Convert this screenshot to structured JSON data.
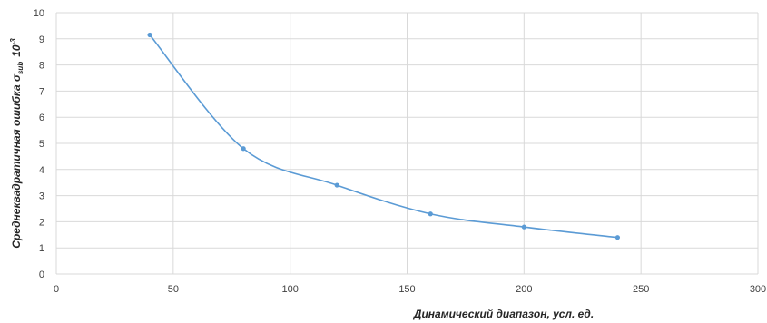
{
  "chart_data": {
    "type": "scatter",
    "title": "",
    "xlabel": "Динамический диапазон, усл. ед.",
    "ylabel": {
      "main": "Среднеквадратичная ошибка σ",
      "subscript": "sub",
      "multiplier": "10",
      "exponent": "-3"
    },
    "xlim": [
      0,
      300
    ],
    "ylim": [
      0,
      10
    ],
    "x_ticks": [
      0,
      50,
      100,
      150,
      200,
      250,
      300
    ],
    "y_ticks": [
      0,
      1,
      2,
      3,
      4,
      5,
      6,
      7,
      8,
      9,
      10
    ],
    "grid": true,
    "legend": "none",
    "smoothed_line": true,
    "series": [
      {
        "color": "#5b9bd5",
        "points": [
          {
            "x": 40,
            "y": 9.15
          },
          {
            "x": 80,
            "y": 4.8
          },
          {
            "x": 120,
            "y": 3.4
          },
          {
            "x": 160,
            "y": 2.3
          },
          {
            "x": 200,
            "y": 1.8
          },
          {
            "x": 240,
            "y": 1.4
          }
        ]
      }
    ]
  }
}
